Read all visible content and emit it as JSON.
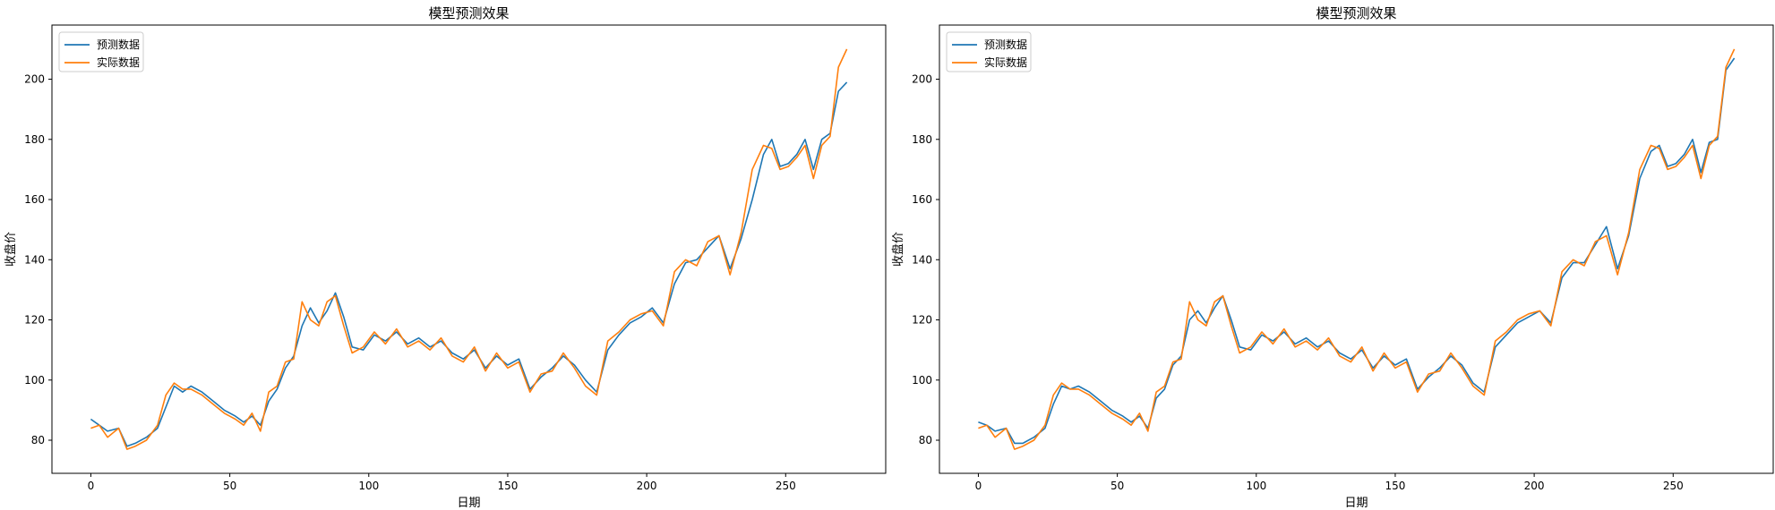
{
  "chart_data": [
    {
      "type": "line",
      "title": "模型预测效果",
      "xlabel": "日期",
      "ylabel": "收盘价",
      "xlim": [
        -14,
        286
      ],
      "ylim": [
        69,
        218
      ],
      "xticks": [
        0,
        50,
        100,
        150,
        200,
        250
      ],
      "yticks": [
        80,
        100,
        120,
        140,
        160,
        180,
        200
      ],
      "grid": false,
      "legend": "top-left",
      "series": [
        {
          "name": "预测数据",
          "color": "#1f77b4",
          "x": [
            0,
            3,
            6,
            10,
            13,
            16,
            20,
            24,
            27,
            30,
            33,
            36,
            40,
            44,
            48,
            52,
            55,
            58,
            61,
            64,
            67,
            70,
            73,
            76,
            79,
            82,
            85,
            88,
            91,
            94,
            98,
            102,
            106,
            110,
            114,
            118,
            122,
            126,
            130,
            134,
            138,
            142,
            146,
            150,
            154,
            158,
            162,
            166,
            170,
            174,
            178,
            182,
            186,
            190,
            194,
            198,
            202,
            206,
            210,
            214,
            218,
            222,
            226,
            230,
            234,
            238,
            242,
            245,
            248,
            251,
            254,
            257,
            260,
            263,
            266,
            269,
            272
          ],
          "y": [
            87,
            85,
            83,
            84,
            78,
            79,
            81,
            84,
            91,
            98,
            96,
            98,
            96,
            93,
            90,
            88,
            86,
            88,
            85,
            93,
            97,
            104,
            108,
            118,
            124,
            119,
            123,
            129,
            121,
            111,
            110,
            115,
            113,
            116,
            112,
            114,
            111,
            113,
            109,
            107,
            110,
            104,
            108,
            105,
            107,
            97,
            101,
            104,
            108,
            105,
            100,
            96,
            110,
            115,
            119,
            121,
            124,
            119,
            132,
            139,
            140,
            144,
            148,
            137,
            147,
            160,
            175,
            180,
            171,
            172,
            175,
            180,
            170,
            180,
            182,
            196,
            199
          ]
        },
        {
          "name": "实际数据",
          "color": "#ff7f0e",
          "x": [
            0,
            3,
            6,
            10,
            13,
            16,
            20,
            24,
            27,
            30,
            33,
            36,
            40,
            44,
            48,
            52,
            55,
            58,
            61,
            64,
            67,
            70,
            73,
            76,
            79,
            82,
            85,
            88,
            91,
            94,
            98,
            102,
            106,
            110,
            114,
            118,
            122,
            126,
            130,
            134,
            138,
            142,
            146,
            150,
            154,
            158,
            162,
            166,
            170,
            174,
            178,
            182,
            186,
            190,
            194,
            198,
            202,
            206,
            210,
            214,
            218,
            222,
            226,
            230,
            234,
            238,
            242,
            245,
            248,
            251,
            254,
            257,
            260,
            263,
            266,
            269,
            272
          ],
          "y": [
            84,
            85,
            81,
            84,
            77,
            78,
            80,
            85,
            95,
            99,
            97,
            97,
            95,
            92,
            89,
            87,
            85,
            89,
            83,
            96,
            98,
            106,
            107,
            126,
            120,
            118,
            126,
            128,
            118,
            109,
            111,
            116,
            112,
            117,
            111,
            113,
            110,
            114,
            108,
            106,
            111,
            103,
            109,
            104,
            106,
            96,
            102,
            103,
            109,
            104,
            98,
            95,
            113,
            116,
            120,
            122,
            123,
            118,
            136,
            140,
            138,
            146,
            148,
            135,
            149,
            170,
            178,
            177,
            170,
            171,
            174,
            178,
            167,
            178,
            181,
            204,
            210
          ]
        }
      ]
    },
    {
      "type": "line",
      "title": "模型预测效果",
      "xlabel": "日期",
      "ylabel": "收盘价",
      "xlim": [
        -14,
        286
      ],
      "ylim": [
        69,
        218
      ],
      "xticks": [
        0,
        50,
        100,
        150,
        200,
        250
      ],
      "yticks": [
        80,
        100,
        120,
        140,
        160,
        180,
        200
      ],
      "grid": false,
      "legend": "top-left",
      "series": [
        {
          "name": "预测数据",
          "color": "#1f77b4",
          "x": [
            0,
            3,
            6,
            10,
            13,
            16,
            20,
            24,
            27,
            30,
            33,
            36,
            40,
            44,
            48,
            52,
            55,
            58,
            61,
            64,
            67,
            70,
            73,
            76,
            79,
            82,
            85,
            88,
            91,
            94,
            98,
            102,
            106,
            110,
            114,
            118,
            122,
            126,
            130,
            134,
            138,
            142,
            146,
            150,
            154,
            158,
            162,
            166,
            170,
            174,
            178,
            182,
            186,
            190,
            194,
            198,
            202,
            206,
            210,
            214,
            218,
            222,
            226,
            230,
            234,
            238,
            242,
            245,
            248,
            251,
            254,
            257,
            260,
            263,
            266,
            269,
            272
          ],
          "y": [
            86,
            85,
            83,
            84,
            79,
            79,
            81,
            84,
            92,
            98,
            97,
            98,
            96,
            93,
            90,
            88,
            86,
            88,
            84,
            94,
            97,
            105,
            108,
            120,
            123,
            119,
            124,
            128,
            120,
            111,
            110,
            115,
            113,
            116,
            112,
            114,
            111,
            113,
            109,
            107,
            110,
            104,
            108,
            105,
            107,
            97,
            101,
            104,
            108,
            105,
            99,
            96,
            111,
            115,
            119,
            121,
            123,
            119,
            134,
            139,
            139,
            145,
            151,
            137,
            148,
            167,
            176,
            178,
            171,
            172,
            175,
            180,
            169,
            179,
            180,
            203,
            207
          ]
        },
        {
          "name": "实际数据",
          "color": "#ff7f0e",
          "x": [
            0,
            3,
            6,
            10,
            13,
            16,
            20,
            24,
            27,
            30,
            33,
            36,
            40,
            44,
            48,
            52,
            55,
            58,
            61,
            64,
            67,
            70,
            73,
            76,
            79,
            82,
            85,
            88,
            91,
            94,
            98,
            102,
            106,
            110,
            114,
            118,
            122,
            126,
            130,
            134,
            138,
            142,
            146,
            150,
            154,
            158,
            162,
            166,
            170,
            174,
            178,
            182,
            186,
            190,
            194,
            198,
            202,
            206,
            210,
            214,
            218,
            222,
            226,
            230,
            234,
            238,
            242,
            245,
            248,
            251,
            254,
            257,
            260,
            263,
            266,
            269,
            272
          ],
          "y": [
            84,
            85,
            81,
            84,
            77,
            78,
            80,
            85,
            95,
            99,
            97,
            97,
            95,
            92,
            89,
            87,
            85,
            89,
            83,
            96,
            98,
            106,
            107,
            126,
            120,
            118,
            126,
            128,
            118,
            109,
            111,
            116,
            112,
            117,
            111,
            113,
            110,
            114,
            108,
            106,
            111,
            103,
            109,
            104,
            106,
            96,
            102,
            103,
            109,
            104,
            98,
            95,
            113,
            116,
            120,
            122,
            123,
            118,
            136,
            140,
            138,
            146,
            148,
            135,
            149,
            170,
            178,
            177,
            170,
            171,
            174,
            178,
            167,
            178,
            181,
            204,
            210
          ]
        }
      ]
    }
  ]
}
